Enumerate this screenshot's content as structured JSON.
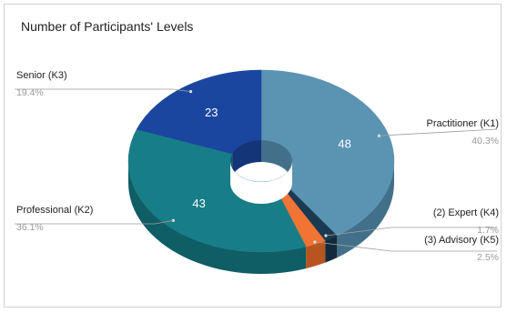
{
  "chart_data": {
    "type": "pie",
    "title": "Number of Participants' Levels",
    "donut": true,
    "style": "3d",
    "slices": [
      {
        "label": "Practitioner (K1)",
        "value": 48,
        "percent": "40.3%",
        "color": "#5b93b3",
        "side": "#42708a"
      },
      {
        "label": "(2) Expert (K4)",
        "value": 2,
        "percent": "1.7%",
        "color": "#1a3a52",
        "side": "#122a3c"
      },
      {
        "label": "(3) Advisory (K5)",
        "value": 3,
        "percent": "2.5%",
        "color": "#f07434",
        "side": "#b8541f"
      },
      {
        "label": "Professional (K2)",
        "value": 43,
        "percent": "36.1%",
        "color": "#177d87",
        "side": "#0f5d65"
      },
      {
        "label": "Senior (K3)",
        "value": 23,
        "percent": "19.4%",
        "color": "#1b46a0",
        "side": "#143578"
      }
    ]
  }
}
